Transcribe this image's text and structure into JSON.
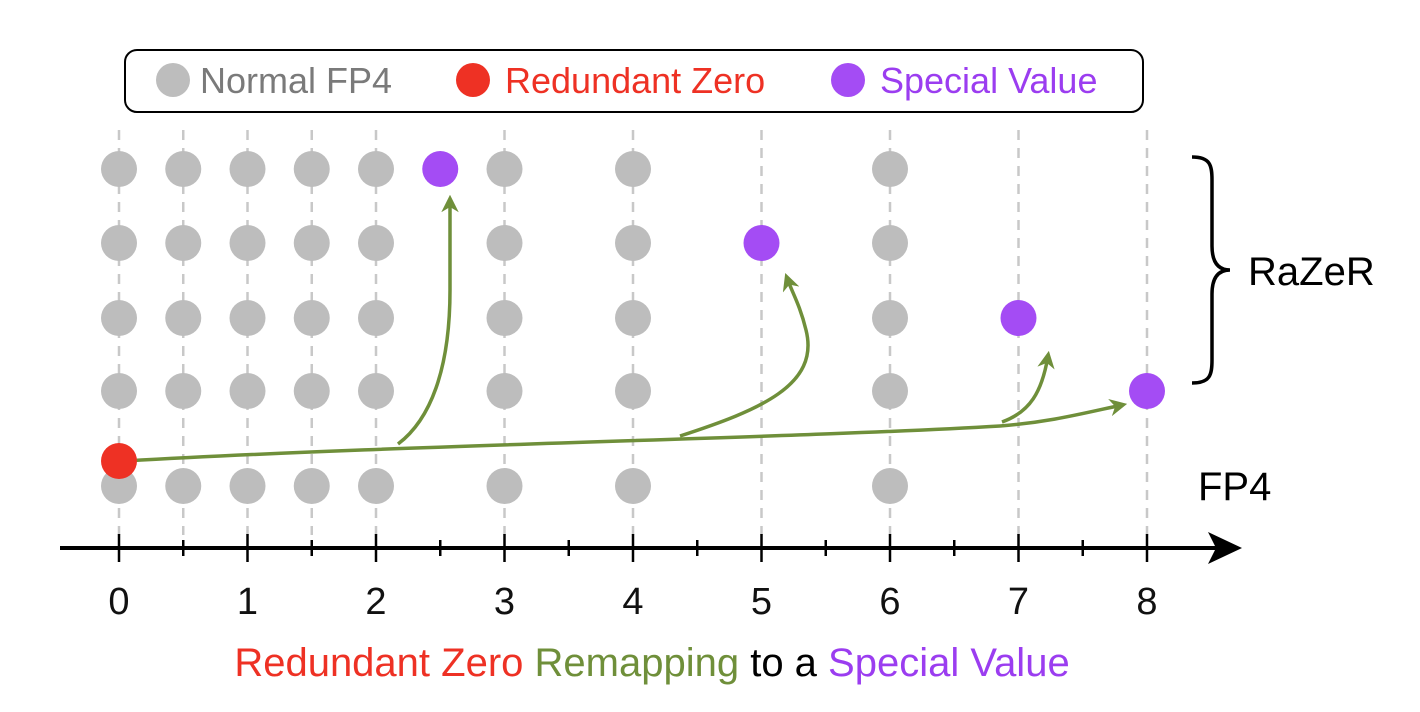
{
  "legend": {
    "items": [
      {
        "label": "Normal FP4",
        "color": "#bdbdbd",
        "text_color": "#7a7a7a"
      },
      {
        "label": "Redundant Zero",
        "color": "#ee3124",
        "text_color": "#ee3124"
      },
      {
        "label": "Special Value",
        "color": "#a44cf4",
        "text_color": "#9b3df0"
      }
    ]
  },
  "colors": {
    "normal": "#bdbdbd",
    "redundant_zero": "#ee3124",
    "special": "#a44cf4",
    "remap": "#6f8f3a",
    "grid": "#c8c8c8",
    "axis": "#000000"
  },
  "axis": {
    "min": 0,
    "max": 8,
    "major_ticks": [
      0,
      1,
      2,
      3,
      4,
      5,
      6,
      7,
      8
    ],
    "minor_ticks": [
      0.5,
      1.5,
      2.5,
      3.5,
      4.5,
      5.5,
      6.5,
      7.5
    ],
    "tick_labels": [
      "0",
      "1",
      "2",
      "3",
      "4",
      "5",
      "6",
      "7",
      "8"
    ]
  },
  "gridlines_at": [
    0,
    0.5,
    1,
    1.5,
    2,
    3,
    4,
    5,
    6,
    7,
    8
  ],
  "fp4_values": [
    0,
    0.5,
    1,
    1.5,
    2,
    3,
    4,
    6
  ],
  "razer_rows": [
    {
      "special_value": 2.5
    },
    {
      "special_value": 5
    },
    {
      "special_value": 7
    },
    {
      "special_value": 8
    }
  ],
  "redundant_zero_value": 0,
  "labels": {
    "razer": "RaZeR",
    "fp4": "FP4"
  },
  "caption": {
    "part1": "Redundant Zero",
    "part2": " Remapping",
    "part3": " to a ",
    "part4": "Special Value"
  }
}
